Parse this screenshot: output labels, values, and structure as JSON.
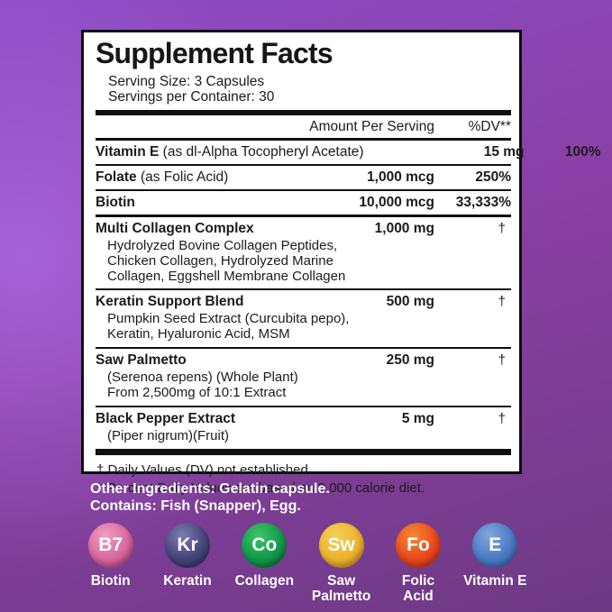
{
  "panel": {
    "title": "Supplement Facts",
    "serving_size": "Serving Size: 3 Capsules",
    "servings_per_container": "Servings per Container: 30",
    "col_amount": "Amount Per Serving",
    "col_dv": "%DV**",
    "rows": [
      {
        "name": "Vitamin E",
        "desc": " (as dl-Alpha Tocopheryl Acetate)",
        "amount": "15 mg",
        "dv": "100%"
      },
      {
        "name": "Folate",
        "desc": " (as Folic Acid)",
        "amount": "1,000 mcg",
        "dv": "250%"
      },
      {
        "name": "Biotin",
        "desc": "",
        "amount": "10,000 mcg",
        "dv": "33,333%"
      },
      {
        "name": "Multi Collagen Complex",
        "desc": "",
        "amount": "1,000 mg",
        "dv": "†",
        "sub": [
          "Hydrolyzed Bovine Collagen Peptides,",
          "Chicken Collagen, Hydrolyzed Marine",
          "Collagen, Eggshell Membrane Collagen"
        ]
      },
      {
        "name": "Keratin Support Blend",
        "desc": "",
        "amount": "500 mg",
        "dv": "†",
        "sub": [
          "Pumpkin Seed Extract (Curcubita pepo),",
          "Keratin, Hyaluronic Acid, MSM"
        ]
      },
      {
        "name": "Saw Palmetto",
        "desc": "",
        "amount": "250 mg",
        "dv": "†",
        "sub": [
          "(Serenoa repens) (Whole Plant)",
          "From 2,500mg of 10:1 Extract"
        ]
      },
      {
        "name": "Black Pepper Extract",
        "desc": "",
        "amount": "5 mg",
        "dv": "†",
        "sub": [
          "(Piper nigrum)(Fruit)"
        ]
      }
    ],
    "footnote_dagger": "† Daily Values (DV) not established.",
    "footnote_percent": "**Percent Daily Values are based on 2,000 calorie diet."
  },
  "other": {
    "ingredients": "Other Ingredients: Gelatin capsule.",
    "contains": "Contains: Fish (Snapper), Egg."
  },
  "badges": [
    {
      "letter": "B7",
      "label": "Biotin",
      "color": "#d9679e",
      "highlight": "#ef9dbd",
      "shade": "#b04277"
    },
    {
      "letter": "Kr",
      "label": "Keratin",
      "color": "#45447a",
      "highlight": "#7d7cb0",
      "shade": "#302f5c"
    },
    {
      "letter": "Co",
      "label": "Collagen",
      "color": "#12994a",
      "highlight": "#3cc468",
      "shade": "#0b6e33"
    },
    {
      "letter": "Sw",
      "label": "Saw\nPalmetto",
      "color": "#ecb32e",
      "highlight": "#f6d055",
      "shade": "#d18f1f"
    },
    {
      "letter": "Fo",
      "label": "Folic\nAcid",
      "color": "#e8481d",
      "highlight": "#f58a2e",
      "shade": "#d03014"
    },
    {
      "letter": "E",
      "label": "Vitamin E",
      "color": "#4a7ac6",
      "highlight": "#82a6de",
      "shade": "#3a62a8"
    }
  ],
  "colors": {
    "bg_top": "#8c4bc5",
    "bg_mid": "#8a3fa3",
    "bg_bottom": "#6d3a84",
    "bg_glow": "#b06ee8",
    "panel_bg": "#ffffff",
    "panel_border": "#0d0d0d",
    "text_dark": "#1b1b1b",
    "text_light": "#ffffff"
  }
}
